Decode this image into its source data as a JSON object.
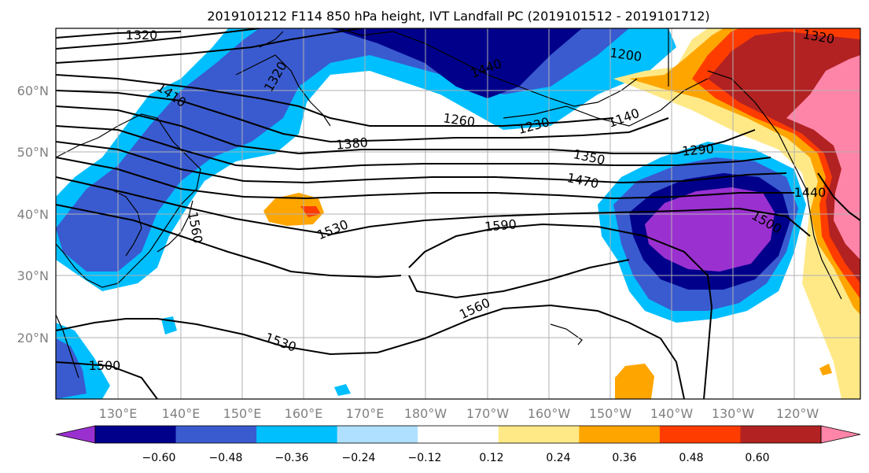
{
  "title": "2019101212 F114 850 hPa height, IVT Landfall PC (2019101512 - 2019101712)",
  "map": {
    "lon_labels": [
      "130°E",
      "140°E",
      "150°E",
      "160°E",
      "170°E",
      "180°W",
      "170°W",
      "160°W",
      "150°W",
      "140°W",
      "130°W",
      "120°W"
    ],
    "lat_labels": [
      "60°N",
      "50°N",
      "40°N",
      "30°N",
      "20°N"
    ],
    "contour_labels": [
      "1320",
      "1320",
      "1320",
      "1410",
      "1440",
      "1200",
      "1260",
      "1230",
      "1140",
      "1380",
      "1350",
      "1290",
      "1470",
      "1440",
      "1530",
      "1590",
      "1500",
      "1560",
      "1560",
      "1530",
      "1500"
    ]
  },
  "colorbar": {
    "ticks": [
      "−0.60",
      "−0.48",
      "−0.36",
      "−0.24",
      "−0.12",
      "0.12",
      "0.24",
      "0.36",
      "0.48",
      "0.60"
    ],
    "colors": [
      "#9b30d0",
      "#00008b",
      "#3a5bd0",
      "#00bfff",
      "#b0e0ff",
      "#ffffff",
      "#ffe987",
      "#ffa500",
      "#ff3c00",
      "#b22222",
      "#ff85a8"
    ]
  },
  "legend_colors": {
    "land_line": "#000000",
    "grid": "#b0b0b0"
  }
}
